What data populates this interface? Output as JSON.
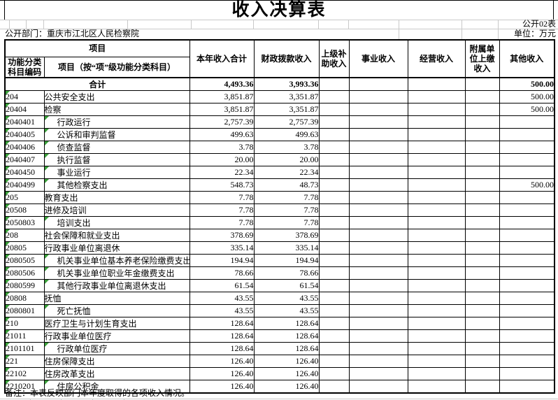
{
  "meta": {
    "title": "收入决算表",
    "table_code": "公开02表",
    "department": "公开部门：重庆市江北区人民检察院",
    "unit": "单位：万元",
    "note": "备注：本表反映部门本年度取得的各项收入情况。"
  },
  "header": {
    "project_group": "项目",
    "col_code": "功能分类科目编码",
    "col_name": "项目（按“项”级功能分类科目）",
    "columns": [
      "本年收入合计",
      "财政拨款收入",
      "上级补助收入",
      "事业收入",
      "经营收入",
      "附属单位上缴收入",
      "其他收入"
    ]
  },
  "total_row": {
    "label": "合计",
    "total": "4,493.36",
    "fiscal": "3,993.36",
    "upper": "",
    "business": "",
    "operating": "",
    "affiliated": "",
    "other": "500.00"
  },
  "rows": [
    {
      "code": "204",
      "name": "公共安全支出",
      "indent": false,
      "total": "3,851.87",
      "fiscal": "3,351.87",
      "other": "500.00"
    },
    {
      "code": "20404",
      "name": "检察",
      "indent": false,
      "total": "3,851.87",
      "fiscal": "3,351.87",
      "other": "500.00"
    },
    {
      "code": "2040401",
      "name": "行政运行",
      "indent": true,
      "total": "2,757.39",
      "fiscal": "2,757.39",
      "other": ""
    },
    {
      "code": "2040405",
      "name": "公诉和审判监督",
      "indent": true,
      "total": "499.63",
      "fiscal": "499.63",
      "other": ""
    },
    {
      "code": "2040406",
      "name": "侦查监督",
      "indent": true,
      "total": "3.78",
      "fiscal": "3.78",
      "other": ""
    },
    {
      "code": "2040407",
      "name": "执行监督",
      "indent": true,
      "total": "20.00",
      "fiscal": "20.00",
      "other": ""
    },
    {
      "code": "2040450",
      "name": "事业运行",
      "indent": true,
      "total": "22.34",
      "fiscal": "22.34",
      "other": ""
    },
    {
      "code": "2040499",
      "name": "其他检察支出",
      "indent": true,
      "total": "548.73",
      "fiscal": "48.73",
      "other": "500.00"
    },
    {
      "code": "205",
      "name": "教育支出",
      "indent": false,
      "total": "7.78",
      "fiscal": "7.78",
      "other": ""
    },
    {
      "code": "20508",
      "name": "进修及培训",
      "indent": false,
      "total": "7.78",
      "fiscal": "7.78",
      "other": ""
    },
    {
      "code": "2050803",
      "name": "培训支出",
      "indent": true,
      "total": "7.78",
      "fiscal": "7.78",
      "other": ""
    },
    {
      "code": "208",
      "name": "社会保障和就业支出",
      "indent": false,
      "total": "378.69",
      "fiscal": "378.69",
      "other": ""
    },
    {
      "code": "20805",
      "name": "行政事业单位离退休",
      "indent": false,
      "total": "335.14",
      "fiscal": "335.14",
      "other": ""
    },
    {
      "code": "2080505",
      "name": "机关事业单位基本养老保险缴费支出",
      "indent": true,
      "total": "194.94",
      "fiscal": "194.94",
      "other": ""
    },
    {
      "code": "2080506",
      "name": "机关事业单位职业年金缴费支出",
      "indent": true,
      "total": "78.66",
      "fiscal": "78.66",
      "other": ""
    },
    {
      "code": "2080599",
      "name": "其他行政事业单位离退休支出",
      "indent": true,
      "total": "61.54",
      "fiscal": "61.54",
      "other": ""
    },
    {
      "code": "20808",
      "name": "抚恤",
      "indent": false,
      "total": "43.55",
      "fiscal": "43.55",
      "other": ""
    },
    {
      "code": "2080801",
      "name": "死亡抚恤",
      "indent": true,
      "total": "43.55",
      "fiscal": "43.55",
      "other": ""
    },
    {
      "code": "210",
      "name": "医疗卫生与计划生育支出",
      "indent": false,
      "total": "128.64",
      "fiscal": "128.64",
      "other": ""
    },
    {
      "code": "21011",
      "name": "行政事业单位医疗",
      "indent": false,
      "total": "128.64",
      "fiscal": "128.64",
      "other": ""
    },
    {
      "code": "2101101",
      "name": "行政单位医疗",
      "indent": true,
      "total": "128.64",
      "fiscal": "128.64",
      "other": ""
    },
    {
      "code": "221",
      "name": "住房保障支出",
      "indent": false,
      "total": "126.40",
      "fiscal": "126.40",
      "other": ""
    },
    {
      "code": "22102",
      "name": "住房改革支出",
      "indent": false,
      "total": "126.40",
      "fiscal": "126.40",
      "other": ""
    },
    {
      "code": "2210201",
      "name": "住房公积金",
      "indent": true,
      "total": "126.40",
      "fiscal": "126.40",
      "other": ""
    }
  ]
}
